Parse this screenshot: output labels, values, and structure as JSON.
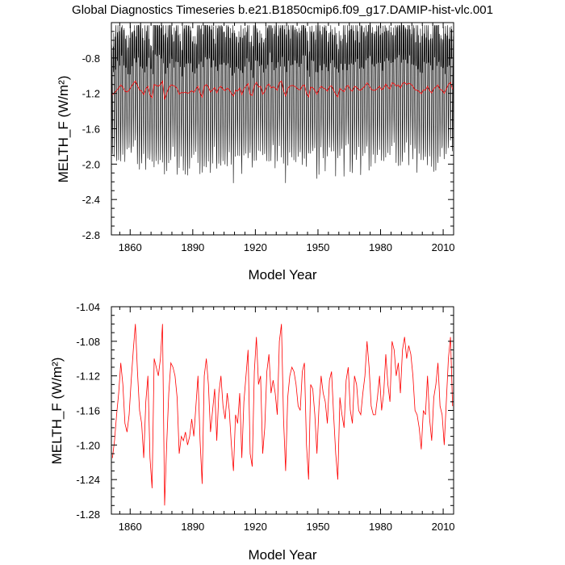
{
  "title": "Global Diagnostics Timeseries b.e21.B1850cmip6.f09_g17.DAMIP-hist-vlc.001",
  "chart_data": [
    {
      "type": "line",
      "xlabel": "Model Year",
      "ylabel": "MELTH_F (W/m²)",
      "xlim": [
        1851,
        2015
      ],
      "ylim": [
        -2.8,
        -0.4
      ],
      "x_ticks": [
        1860,
        1890,
        1920,
        1950,
        1980,
        2010
      ],
      "y_ticks": [
        -2.8,
        -2.4,
        -2.0,
        -1.6,
        -1.2,
        -0.8
      ],
      "series": [
        {
          "color": "#000000",
          "description_monthly": "monthly values oscillating seasonally",
          "monthly_range": [
            -2.4,
            -0.42
          ],
          "year_start": 1851,
          "year_end": 2014
        },
        {
          "color": "#ff0000",
          "annual_values_ref": "annual"
        }
      ]
    },
    {
      "type": "line",
      "xlabel": "Model Year",
      "ylabel": "MELTH_F (W/m²)",
      "xlim": [
        1851,
        2015
      ],
      "ylim": [
        -1.28,
        -1.04
      ],
      "x_ticks": [
        1860,
        1890,
        1920,
        1950,
        1980,
        2010
      ],
      "y_ticks": [
        -1.28,
        -1.24,
        -1.2,
        -1.16,
        -1.12,
        -1.08,
        -1.04
      ],
      "series": [
        {
          "color": "#ff0000",
          "x_start": 1851,
          "values": [
            -1.215,
            -1.195,
            -1.165,
            -1.14,
            -1.105,
            -1.13,
            -1.175,
            -1.185,
            -1.165,
            -1.125,
            -1.09,
            -1.06,
            -1.115,
            -1.16,
            -1.175,
            -1.215,
            -1.15,
            -1.12,
            -1.215,
            -1.25,
            -1.1,
            -1.11,
            -1.12,
            -1.1,
            -1.06,
            -1.27,
            -1.2,
            -1.14,
            -1.105,
            -1.11,
            -1.12,
            -1.145,
            -1.21,
            -1.19,
            -1.195,
            -1.185,
            -1.2,
            -1.19,
            -1.17,
            -1.19,
            -1.155,
            -1.12,
            -1.195,
            -1.245,
            -1.12,
            -1.1,
            -1.13,
            -1.185,
            -1.16,
            -1.135,
            -1.195,
            -1.14,
            -1.12,
            -1.155,
            -1.17,
            -1.14,
            -1.16,
            -1.2,
            -1.23,
            -1.165,
            -1.175,
            -1.14,
            -1.215,
            -1.15,
            -1.12,
            -1.09,
            -1.21,
            -1.225,
            -1.115,
            -1.075,
            -1.13,
            -1.12,
            -1.21,
            -1.18,
            -1.115,
            -1.095,
            -1.14,
            -1.125,
            -1.14,
            -1.165,
            -1.08,
            -1.06,
            -1.17,
            -1.23,
            -1.145,
            -1.12,
            -1.11,
            -1.115,
            -1.13,
            -1.155,
            -1.16,
            -1.115,
            -1.105,
            -1.2,
            -1.24,
            -1.13,
            -1.135,
            -1.165,
            -1.21,
            -1.155,
            -1.12,
            -1.14,
            -1.15,
            -1.175,
            -1.125,
            -1.115,
            -1.165,
            -1.21,
            -1.24,
            -1.145,
            -1.165,
            -1.18,
            -1.125,
            -1.11,
            -1.16,
            -1.175,
            -1.12,
            -1.13,
            -1.16,
            -1.165,
            -1.14,
            -1.12,
            -1.08,
            -1.11,
            -1.155,
            -1.165,
            -1.165,
            -1.145,
            -1.12,
            -1.16,
            -1.14,
            -1.095,
            -1.13,
            -1.15,
            -1.08,
            -1.09,
            -1.12,
            -1.105,
            -1.14,
            -1.09,
            -1.075,
            -1.1,
            -1.085,
            -1.095,
            -1.12,
            -1.16,
            -1.165,
            -1.18,
            -1.205,
            -1.16,
            -1.165,
            -1.12,
            -1.17,
            -1.195,
            -1.145,
            -1.13,
            -1.105,
            -1.155,
            -1.165,
            -1.2,
            -1.15,
            -1.1,
            -1.075,
            -1.155
          ]
        }
      ]
    }
  ]
}
